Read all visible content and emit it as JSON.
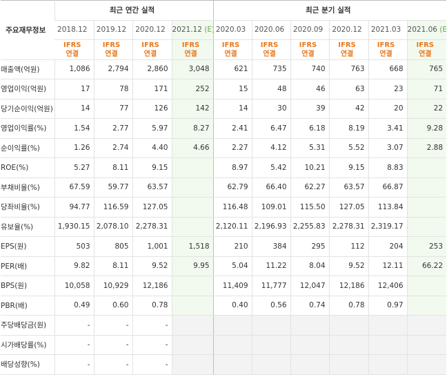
{
  "header": {
    "row_label": "주요재무정보",
    "annual_title": "최근 연간 실적",
    "quarter_title": "최근 분기 실적",
    "estimate_mark": "(E)",
    "ifrs_top": "IFRS",
    "ifrs_bottom": "연결"
  },
  "annual_periods": [
    "2018.12",
    "2019.12",
    "2020.12",
    "2021.12"
  ],
  "quarter_periods": [
    "2020.03",
    "2020.06",
    "2020.09",
    "2020.12",
    "2021.03",
    "2021.06"
  ],
  "rows": [
    {
      "label": "매출액(억원)",
      "annual": [
        "1,086",
        "2,794",
        "2,860",
        "3,048"
      ],
      "quarter": [
        "621",
        "735",
        "740",
        "763",
        "668",
        "765"
      ]
    },
    {
      "label": "영업이익(억원)",
      "annual": [
        "17",
        "78",
        "171",
        "252"
      ],
      "quarter": [
        "15",
        "48",
        "46",
        "63",
        "23",
        "71"
      ]
    },
    {
      "label": "당기순이익(억원)",
      "annual": [
        "14",
        "77",
        "126",
        "142"
      ],
      "quarter": [
        "14",
        "30",
        "39",
        "42",
        "20",
        "22"
      ]
    },
    {
      "label": "영업이익률(%)",
      "annual": [
        "1.54",
        "2.77",
        "5.97",
        "8.27"
      ],
      "quarter": [
        "2.41",
        "6.47",
        "6.18",
        "8.19",
        "3.41",
        "9.28"
      ]
    },
    {
      "label": "순이익률(%)",
      "annual": [
        "1.26",
        "2.74",
        "4.40",
        "4.66"
      ],
      "quarter": [
        "2.27",
        "4.12",
        "5.31",
        "5.52",
        "3.07",
        "2.88"
      ]
    },
    {
      "label": "ROE(%)",
      "annual": [
        "5.27",
        "8.11",
        "9.15",
        ""
      ],
      "quarter": [
        "8.97",
        "5.42",
        "10.21",
        "9.15",
        "8.83",
        ""
      ]
    },
    {
      "label": "부채비율(%)",
      "annual": [
        "67.59",
        "59.77",
        "63.57",
        ""
      ],
      "quarter": [
        "62.79",
        "66.40",
        "62.27",
        "63.57",
        "66.87",
        ""
      ]
    },
    {
      "label": "당좌비율(%)",
      "annual": [
        "94.77",
        "116.59",
        "127.05",
        ""
      ],
      "quarter": [
        "116.48",
        "109.01",
        "115.50",
        "127.05",
        "113.84",
        ""
      ]
    },
    {
      "label": "유보율(%)",
      "annual": [
        "1,930.15",
        "2,078.10",
        "2,278.31",
        ""
      ],
      "quarter": [
        "2,120.11",
        "2,196.93",
        "2,255.83",
        "2,278.31",
        "2,319.17",
        ""
      ]
    },
    {
      "label": "EPS(원)",
      "annual": [
        "503",
        "805",
        "1,001",
        "1,518"
      ],
      "quarter": [
        "210",
        "384",
        "295",
        "112",
        "204",
        "253"
      ]
    },
    {
      "label": "PER(배)",
      "annual": [
        "9.82",
        "8.11",
        "9.52",
        "9.95"
      ],
      "quarter": [
        "5.04",
        "11.22",
        "8.04",
        "9.52",
        "12.11",
        "66.22"
      ]
    },
    {
      "label": "BPS(원)",
      "annual": [
        "10,058",
        "10,929",
        "12,186",
        ""
      ],
      "quarter": [
        "11,409",
        "11,777",
        "12,047",
        "12,186",
        "12,406",
        ""
      ]
    },
    {
      "label": "PBR(배)",
      "annual": [
        "0.49",
        "0.60",
        "0.78",
        ""
      ],
      "quarter": [
        "0.40",
        "0.56",
        "0.74",
        "0.78",
        "0.97",
        ""
      ]
    },
    {
      "label": "주당배당금(원)",
      "annual": [
        "-",
        "-",
        "-",
        ""
      ],
      "quarter": [
        "",
        "",
        "",
        "",
        "",
        ""
      ]
    },
    {
      "label": "시가배당률(%)",
      "annual": [
        "-",
        "-",
        "-",
        ""
      ],
      "quarter": [
        "",
        "",
        "",
        "",
        "",
        ""
      ]
    },
    {
      "label": "배당성향(%)",
      "annual": [
        "-",
        "-",
        "-",
        ""
      ],
      "quarter": [
        "",
        "",
        "",
        "",
        "",
        ""
      ]
    }
  ],
  "colors": {
    "estimate_bg": "#f2f9ef",
    "ifrs_text": "#e8781b",
    "empty_bg": "#f3f3f3"
  }
}
